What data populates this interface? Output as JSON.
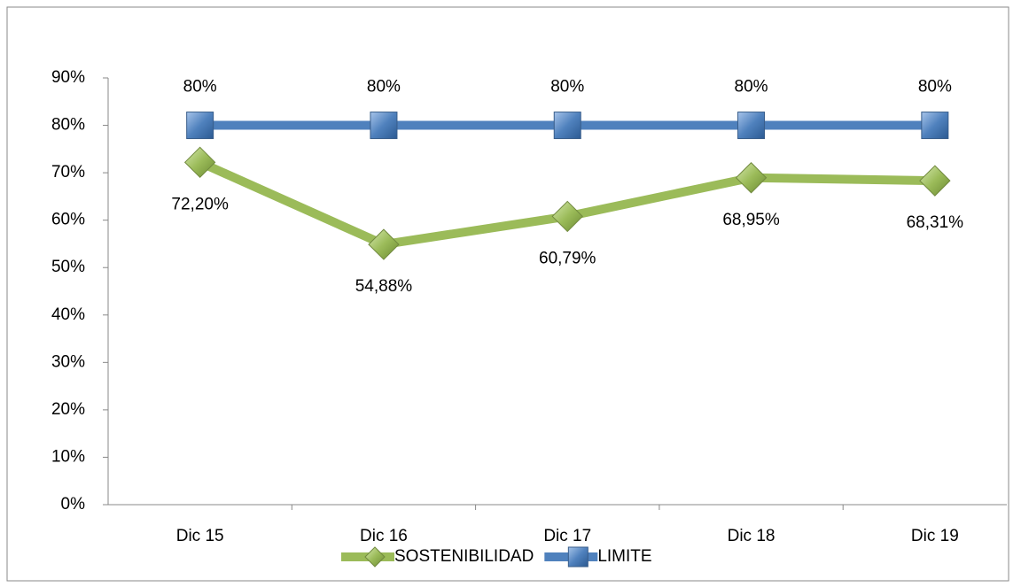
{
  "chart_data": {
    "type": "line",
    "categories": [
      "Dic 15",
      "Dic 16",
      "Dic 17",
      "Dic 18",
      "Dic 19"
    ],
    "series": [
      {
        "name": "SOSTENIBILIDAD",
        "color": "#9bbb59",
        "marker": "diamond",
        "values": [
          72.2,
          54.88,
          60.79,
          68.95,
          68.31
        ],
        "value_labels": [
          "72,20%",
          "54,88%",
          "60,79%",
          "68,95%",
          "68,31%"
        ]
      },
      {
        "name": "LIMITE",
        "color": "#4f81bd",
        "marker": "square",
        "values": [
          80,
          80,
          80,
          80,
          80
        ],
        "value_labels": [
          "80%",
          "80%",
          "80%",
          "80%",
          "80%"
        ]
      }
    ],
    "ylim": [
      0,
      90
    ],
    "yticks": [
      {
        "value": 0,
        "label": "0%"
      },
      {
        "value": 10,
        "label": "10%"
      },
      {
        "value": 20,
        "label": "20%"
      },
      {
        "value": 30,
        "label": "30%"
      },
      {
        "value": 40,
        "label": "40%"
      },
      {
        "value": 50,
        "label": "50%"
      },
      {
        "value": 60,
        "label": "60%"
      },
      {
        "value": 70,
        "label": "70%"
      },
      {
        "value": 80,
        "label": "80%"
      },
      {
        "value": 90,
        "label": "90%"
      }
    ],
    "grid": false,
    "legend": "bottom"
  }
}
